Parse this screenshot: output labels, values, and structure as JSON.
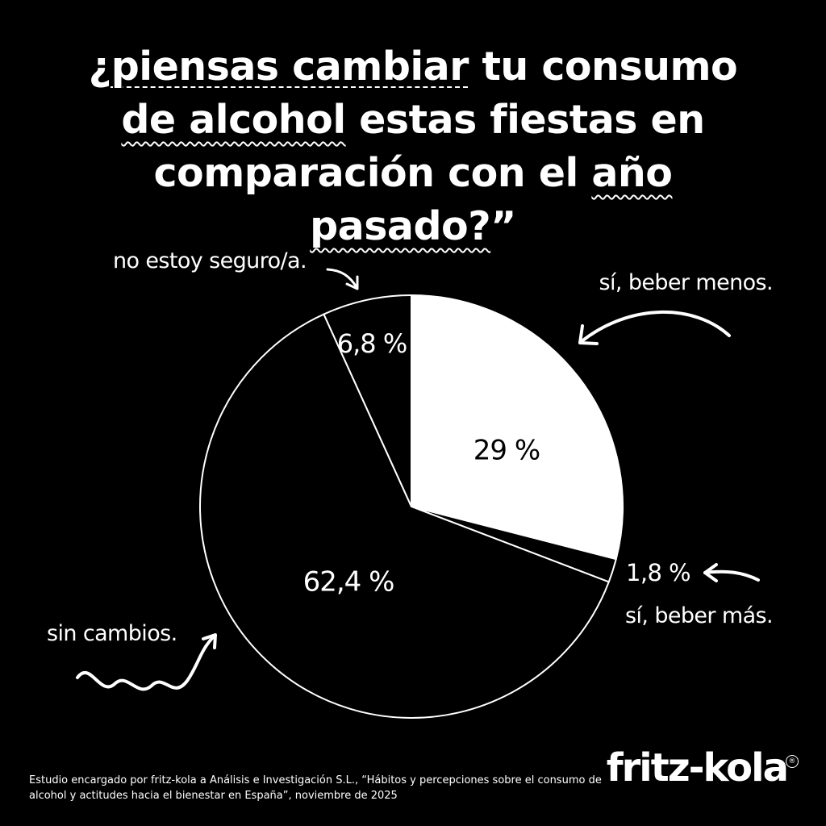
{
  "title": {
    "lead": "¿",
    "dash_part": "piensas cambiar",
    "rest_line1": " tu consumo",
    "wavy_1": "de alcohol",
    "rest_line2": " estas fiestas en comparación con el ",
    "wavy_2": "año pasado?",
    "tail": "”"
  },
  "chart_data": {
    "type": "pie",
    "title": "¿piensas cambiar tu consumo de alcohol estas fiestas en comparación con el año pasado?”",
    "start": "12 o'clock, clockwise",
    "slices": [
      {
        "label": "sí, beber menos.",
        "value": 29,
        "display": "29 %",
        "fill": "#ffffff",
        "text_color": "#000000"
      },
      {
        "label": "sí, beber más.",
        "value": 1.8,
        "display": "1,8 %",
        "fill": "#000000",
        "text_color": "#ffffff"
      },
      {
        "label": "sin cambios.",
        "value": 62.4,
        "display": "62,4 %",
        "fill": "#000000",
        "text_color": "#ffffff"
      },
      {
        "label": "no estoy seguro/a.",
        "value": 6.8,
        "display": "6,8 %",
        "fill": "#000000",
        "text_color": "#ffffff"
      }
    ],
    "outline_color": "#ffffff",
    "background": "#000000"
  },
  "callouts": {
    "not_sure": "no estoy seguro/a.",
    "less": "sí, beber menos.",
    "more": "sí, beber más.",
    "more_value": "1,8 %",
    "no_change": "sin cambios."
  },
  "source": "Estudio encargado por fritz-kola a Análisis e Investigación S.L., “Hábitos y percepciones sobre el consumo de alcohol y actitudes hacia el bienestar en España”, noviembre de 2025",
  "brand": {
    "logo_text": "fritz-kola",
    "registered_mark": "®"
  },
  "colors": {
    "background": "#000000",
    "foreground": "#ffffff"
  },
  "icons": [
    "curved-arrow-icon",
    "curved-arrow-icon",
    "arrow-icon",
    "squiggle-arrow-icon"
  ]
}
